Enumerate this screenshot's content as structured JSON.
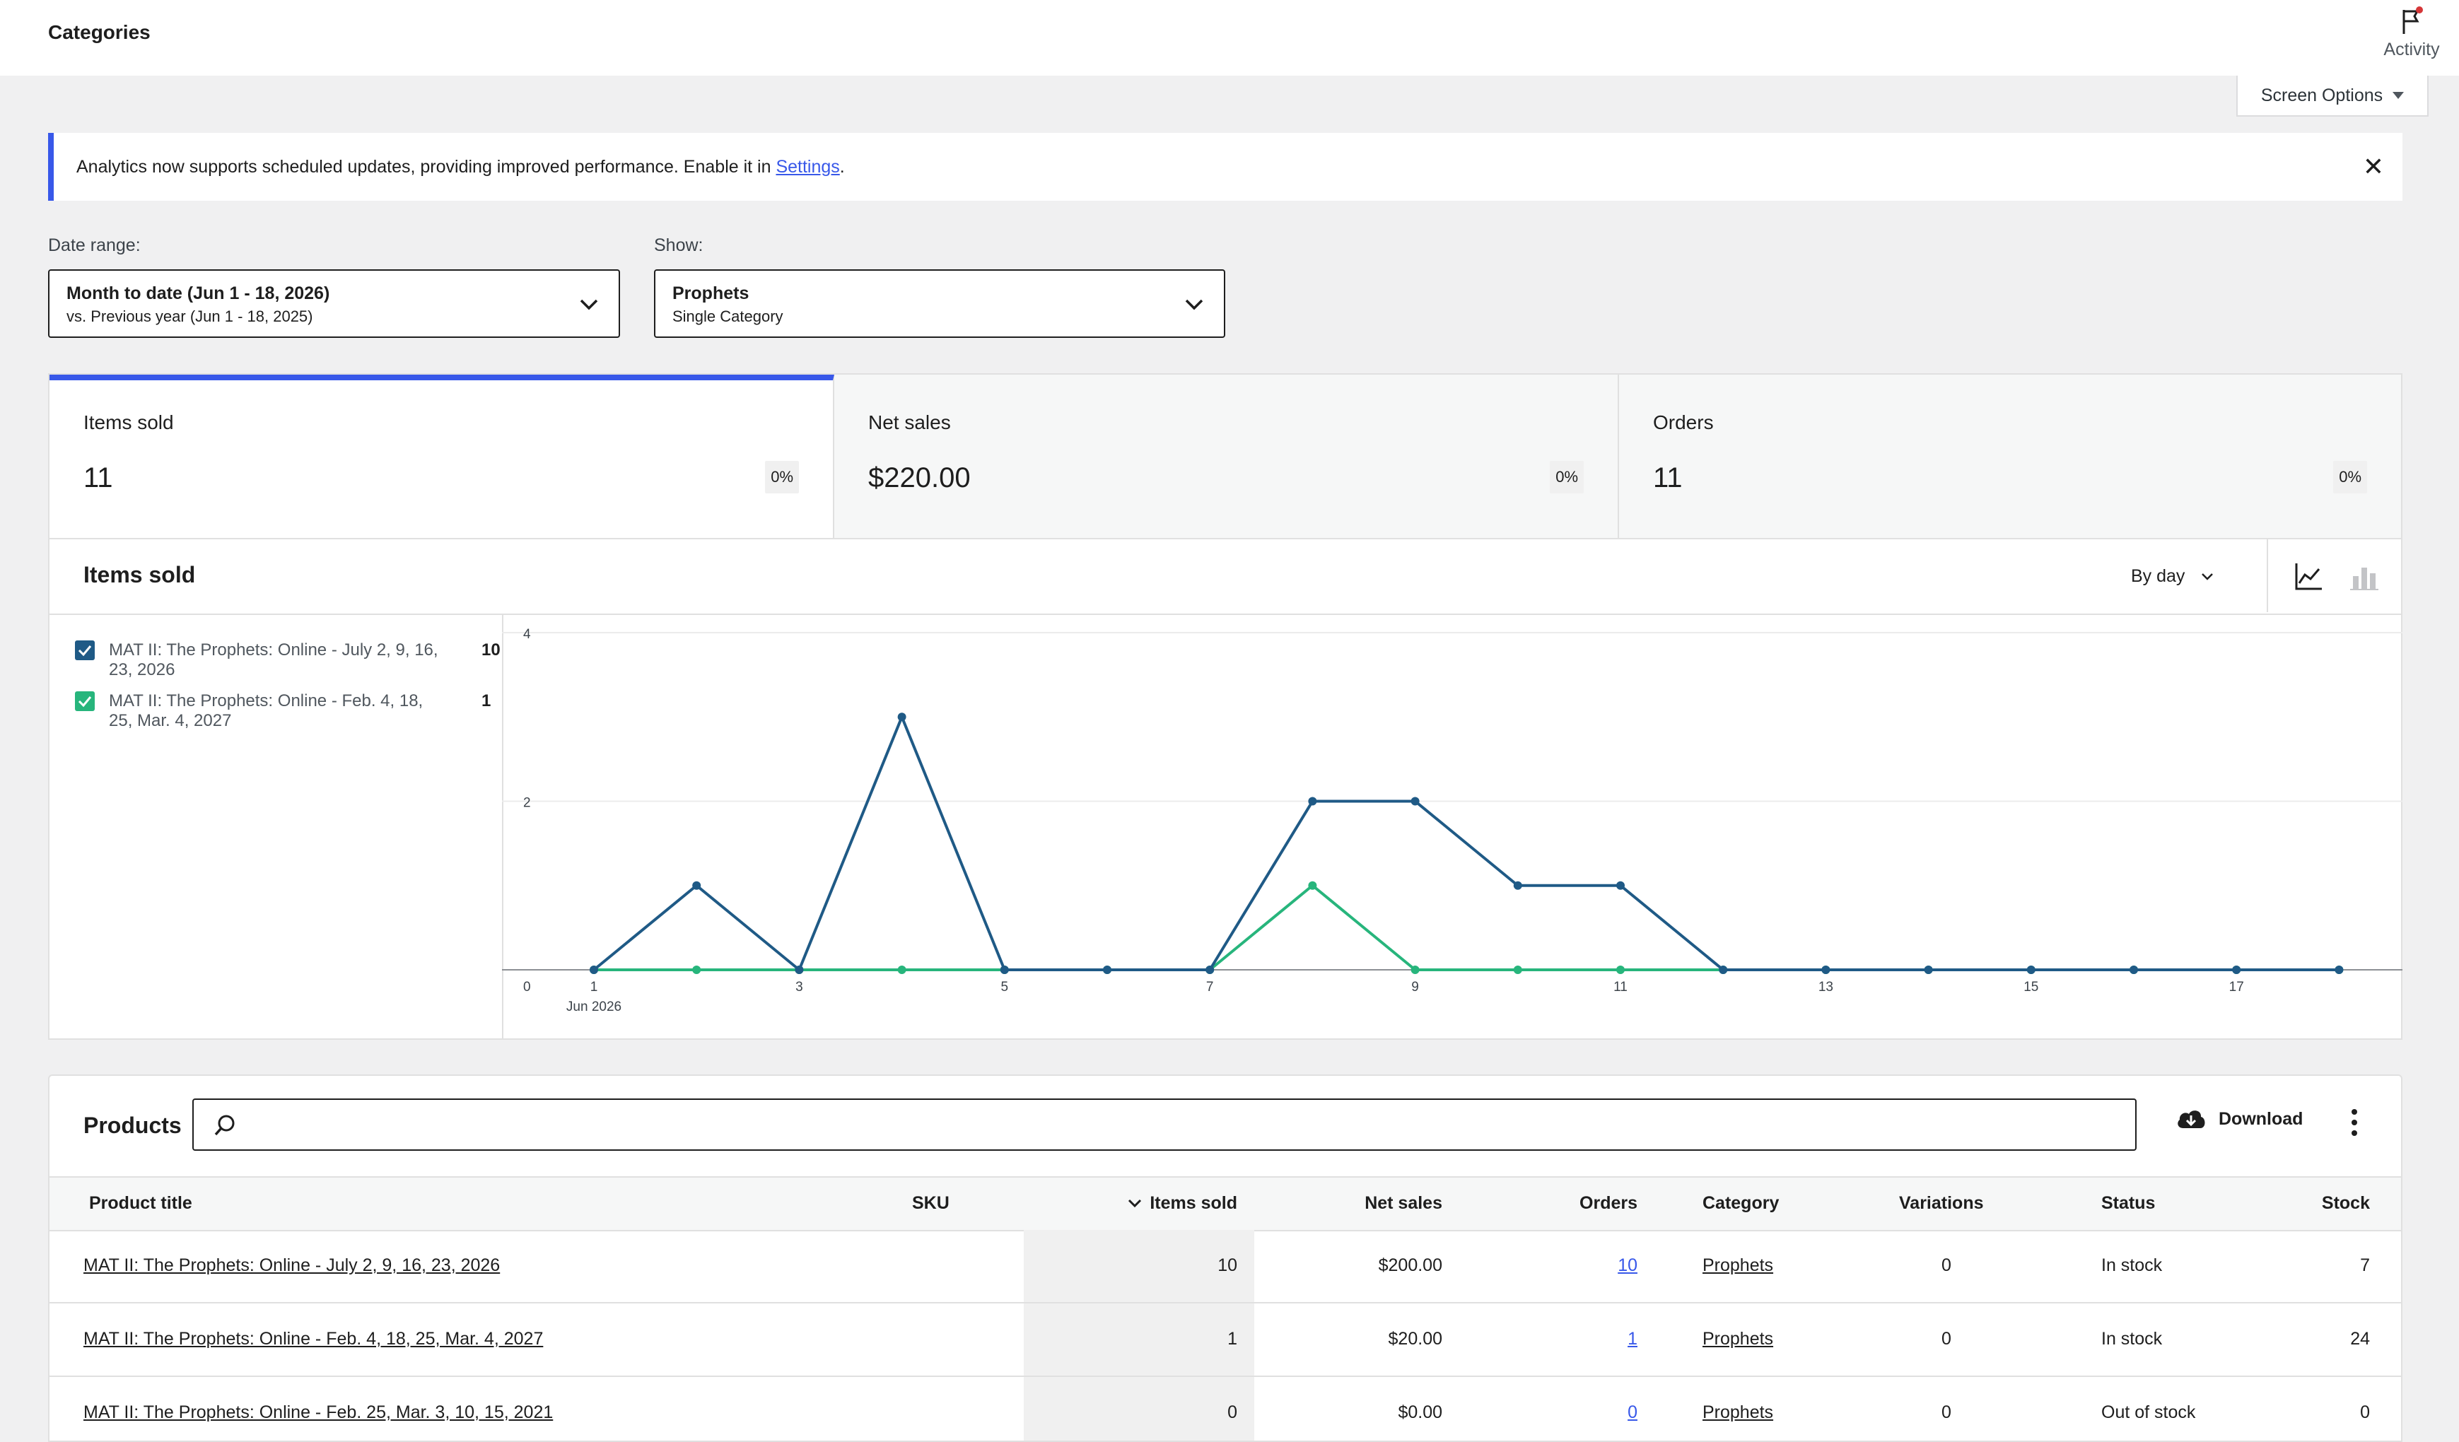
{
  "header": {
    "title": "Categories",
    "activity_label": "Activity"
  },
  "screen_options": {
    "label": "Screen Options"
  },
  "notice": {
    "text": "Analytics now supports scheduled updates, providing improved performance. Enable it in ",
    "link": "Settings",
    "suffix": "."
  },
  "filters": {
    "date_range": {
      "label": "Date range:",
      "primary": "Month to date (Jun 1 - 18, 2026)",
      "secondary": "vs. Previous year (Jun 1 - 18, 2025)"
    },
    "show": {
      "label": "Show:",
      "primary": "Prophets",
      "secondary": "Single Category"
    }
  },
  "summary": [
    {
      "label": "Items sold",
      "value": "11",
      "delta": "0%"
    },
    {
      "label": "Net sales",
      "value": "$220.00",
      "delta": "0%"
    },
    {
      "label": "Orders",
      "value": "11",
      "delta": "0%"
    }
  ],
  "chart_panel": {
    "title": "Items sold",
    "interval": "By day",
    "legend": [
      {
        "name": "MAT II: The Prophets: Online - July 2, 9, 16, 23, 2026",
        "total": "10",
        "color": "#1f5a86"
      },
      {
        "name": "MAT II: The Prophets: Online - Feb. 4, 18, 25, Mar. 4, 2027",
        "total": "1",
        "color": "#27b57c"
      }
    ]
  },
  "chart_data": {
    "type": "line",
    "x": [
      1,
      2,
      3,
      4,
      5,
      6,
      7,
      8,
      9,
      10,
      11,
      12,
      13,
      14,
      15,
      16,
      17,
      18
    ],
    "x_tick_labels": [
      "1",
      "3",
      "5",
      "7",
      "9",
      "11",
      "13",
      "15",
      "17"
    ],
    "x_first_sublabel": "Jun 2026",
    "y_tick_labels": [
      "0",
      "2",
      "4"
    ],
    "ylim": [
      0,
      4
    ],
    "grid": true,
    "series": [
      {
        "name": "MAT II: The Prophets: Online - July 2, 9, 16, 23, 2026",
        "color": "#1f5a86",
        "values": [
          0,
          1,
          0,
          3,
          0,
          0,
          0,
          2,
          2,
          1,
          1,
          0,
          0,
          0,
          0,
          0,
          0,
          0
        ]
      },
      {
        "name": "MAT II: The Prophets: Online - Feb. 4, 18, 25, Mar. 4, 2027",
        "color": "#27b57c",
        "values": [
          0,
          0,
          0,
          0,
          0,
          0,
          0,
          1,
          0,
          0,
          0,
          0,
          0,
          0,
          0,
          0,
          0,
          0
        ]
      }
    ]
  },
  "products": {
    "title": "Products",
    "download_label": "Download",
    "columns": [
      "Product title",
      "SKU",
      "Items sold",
      "Net sales",
      "Orders",
      "Category",
      "Variations",
      "Status",
      "Stock"
    ],
    "rows": [
      {
        "title": "MAT II: The Prophets: Online - July 2, 9, 16, 23, 2026",
        "sku": "",
        "items_sold": "10",
        "net_sales": "$200.00",
        "orders": "10",
        "category": "Prophets",
        "variations": "0",
        "status": "In stock",
        "stock": "7"
      },
      {
        "title": "MAT II: The Prophets: Online - Feb. 4, 18, 25, Mar. 4, 2027",
        "sku": "",
        "items_sold": "1",
        "net_sales": "$20.00",
        "orders": "1",
        "category": "Prophets",
        "variations": "0",
        "status": "In stock",
        "stock": "24"
      },
      {
        "title": "MAT II: The Prophets: Online - Feb. 25, Mar. 3, 10, 15, 2021",
        "sku": "",
        "items_sold": "0",
        "net_sales": "$0.00",
        "orders": "0",
        "category": "Prophets",
        "variations": "0",
        "status": "Out of stock",
        "stock": "0"
      }
    ]
  }
}
